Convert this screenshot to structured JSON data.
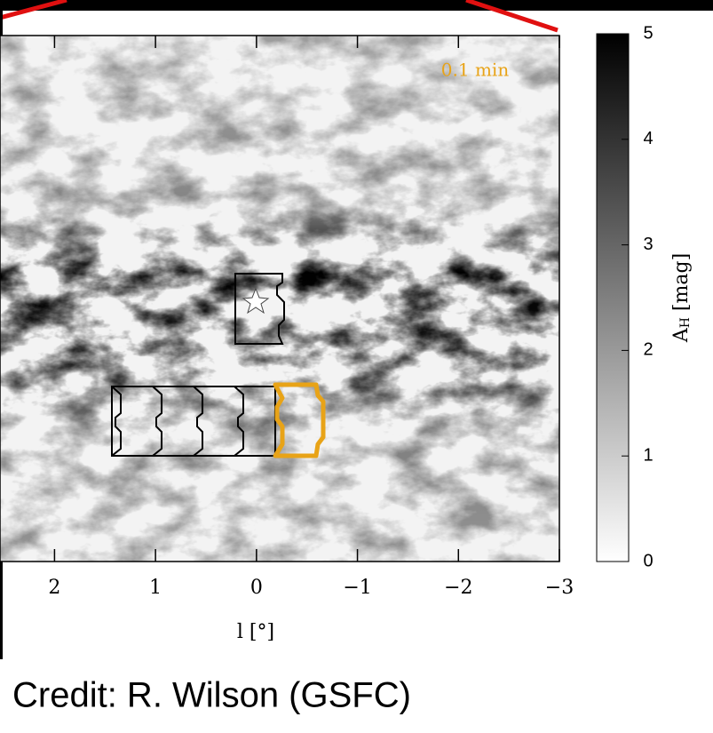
{
  "chart_data": {
    "type": "extinction-map",
    "annotation": "0.1 min",
    "xlabel": "l [°]",
    "xlim": [
      2.54,
      -3
    ],
    "xticks": [
      2,
      1,
      0,
      {
        "value": -1,
        "label": "−1"
      },
      {
        "value": -2,
        "label": "−2"
      },
      {
        "value": -3,
        "label": "−3"
      }
    ],
    "colorbar_label": {
      "main": "A",
      "sub": "H",
      "rest": " [mag]"
    },
    "clim": [
      0,
      5
    ],
    "cticks": [
      0,
      1,
      2,
      3,
      4,
      5
    ],
    "highlight_color": "#e8a317"
  },
  "credit": "Credit: R. Wilson (GSFC)"
}
